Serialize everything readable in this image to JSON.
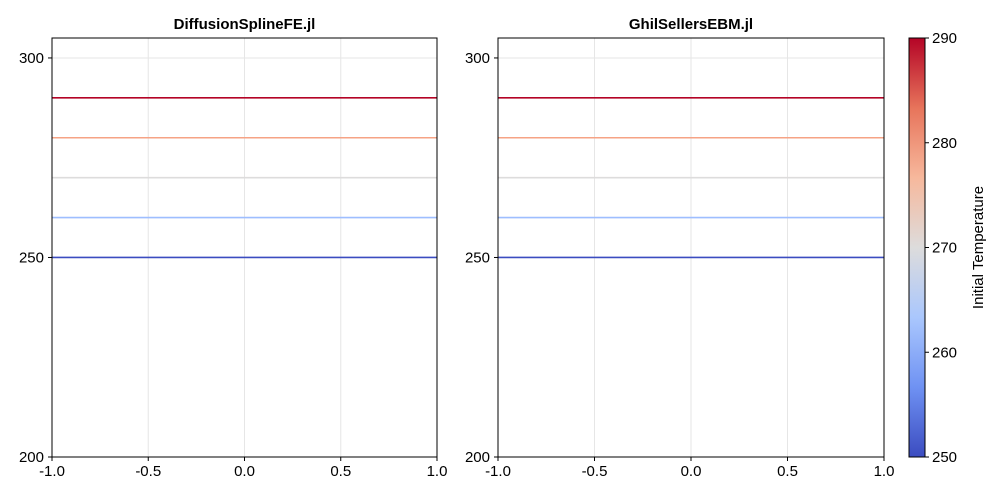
{
  "chart_data": {
    "type": "line",
    "panels": [
      {
        "title": "DiffusionSplineFE.jl",
        "xlim": [
          -1.0,
          1.0
        ],
        "ylim": [
          200,
          305
        ],
        "xticks": [
          -1.0,
          -0.5,
          0.0,
          0.5,
          1.0
        ],
        "xtick_labels": [
          "-1.0",
          "-0.5",
          "0.0",
          "0.5",
          "1.0"
        ],
        "yticks": [
          200,
          250,
          300
        ],
        "ytick_labels": [
          "200",
          "250",
          "300"
        ],
        "grid": true,
        "series": [
          {
            "initial_temperature": 250,
            "x": [
              -1.0,
              1.0
            ],
            "y": [
              250,
              250
            ],
            "color": "#3b4cc0"
          },
          {
            "initial_temperature": 260,
            "x": [
              -1.0,
              1.0
            ],
            "y": [
              260,
              260
            ],
            "color": "#9ebeff"
          },
          {
            "initial_temperature": 270,
            "x": [
              -1.0,
              1.0
            ],
            "y": [
              270,
              270
            ],
            "color": "#dddcdc"
          },
          {
            "initial_temperature": 280,
            "x": [
              -1.0,
              1.0
            ],
            "y": [
              280,
              280
            ],
            "color": "#f6a385"
          },
          {
            "initial_temperature": 290,
            "x": [
              -1.0,
              1.0
            ],
            "y": [
              290,
              290
            ],
            "color": "#b40426"
          }
        ]
      },
      {
        "title": "GhilSellersEBM.jl",
        "xlim": [
          -1.0,
          1.0
        ],
        "ylim": [
          200,
          305
        ],
        "xticks": [
          -1.0,
          -0.5,
          0.0,
          0.5,
          1.0
        ],
        "xtick_labels": [
          "-1.0",
          "-0.5",
          "0.0",
          "0.5",
          "1.0"
        ],
        "yticks": [
          200,
          250,
          300
        ],
        "ytick_labels": [
          "200",
          "250",
          "300"
        ],
        "grid": true,
        "series": [
          {
            "initial_temperature": 250,
            "x": [
              -1.0,
              1.0
            ],
            "y": [
              250,
              250
            ],
            "color": "#3b4cc0"
          },
          {
            "initial_temperature": 260,
            "x": [
              -1.0,
              1.0
            ],
            "y": [
              260,
              260
            ],
            "color": "#9ebeff"
          },
          {
            "initial_temperature": 270,
            "x": [
              -1.0,
              1.0
            ],
            "y": [
              270,
              270
            ],
            "color": "#dddcdc"
          },
          {
            "initial_temperature": 280,
            "x": [
              -1.0,
              1.0
            ],
            "y": [
              280,
              280
            ],
            "color": "#f6a385"
          },
          {
            "initial_temperature": 290,
            "x": [
              -1.0,
              1.0
            ],
            "y": [
              290,
              290
            ],
            "color": "#b40426"
          }
        ]
      }
    ],
    "colorbar": {
      "label": "Initial Temperature",
      "range": [
        250,
        290
      ],
      "ticks": [
        250,
        260,
        270,
        280,
        290
      ],
      "tick_labels": [
        "250",
        "260",
        "270",
        "280",
        "290"
      ],
      "colormap": "coolwarm",
      "color_stops": [
        "#3b4cc0",
        "#6f92f3",
        "#aac7fd",
        "#dddcdc",
        "#f7b89c",
        "#e7745b",
        "#b40426"
      ],
      "placement": "right"
    }
  }
}
